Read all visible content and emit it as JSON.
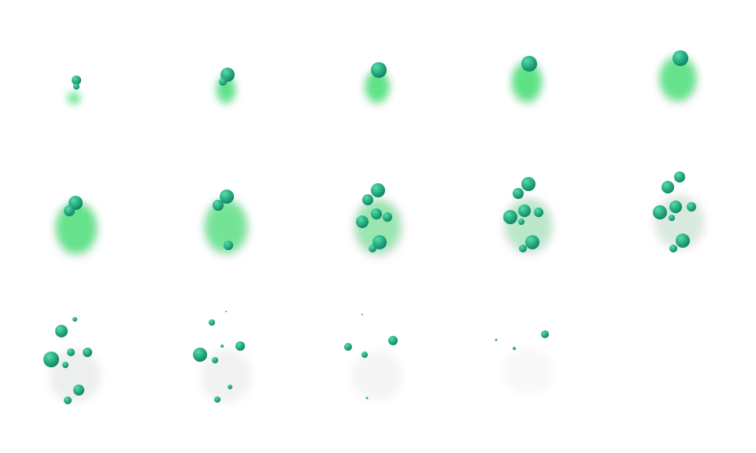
{
  "sprite_sheet": {
    "frame_count": 14,
    "columns": 5,
    "rows": 3,
    "background": "#ffffff",
    "colors": {
      "smoke_green": "#4ee07a",
      "smoke_gray": "#d8dcd9",
      "sphere_light": "#4fe0a8",
      "sphere_dark": "#0d7f63"
    }
  }
}
